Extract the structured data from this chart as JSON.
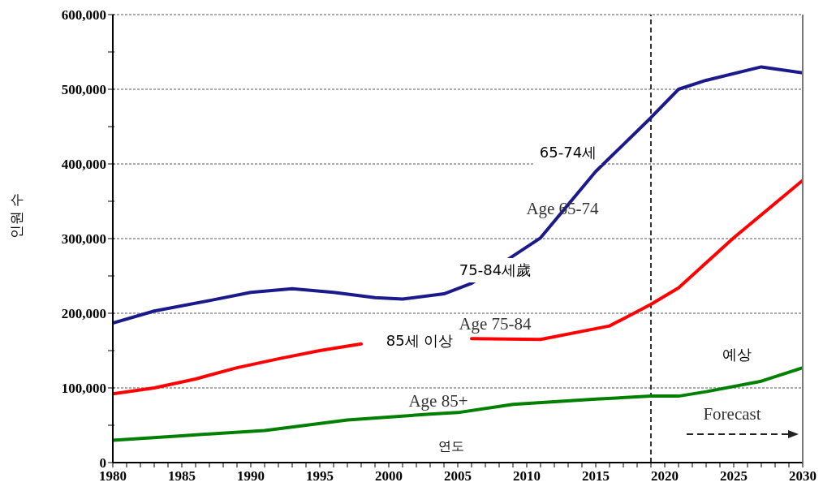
{
  "chart_data": {
    "type": "line",
    "ylabel": "인원 수",
    "xlabel": "연도",
    "series": [
      {
        "color": "#1a1a8c",
        "x": [
          1980,
          1983,
          1987,
          1990,
          1993,
          1996,
          1999,
          2001,
          2004,
          2006,
          2011,
          2015,
          2019,
          2021,
          2023,
          2027,
          2030
        ],
        "values": [
          187000,
          203000,
          217000,
          228000,
          233000,
          228000,
          221000,
          219000,
          226000,
          240000,
          301000,
          390000,
          462000,
          500000,
          512000,
          530000,
          522000
        ]
      },
      {
        "color": "#ff0000",
        "x": [
          1980,
          1983,
          1986,
          1989,
          1992,
          1995,
          1998,
          2002,
          2006,
          2011,
          2016,
          2019,
          2021,
          2025,
          2030
        ],
        "values": [
          92000,
          100000,
          112000,
          127000,
          139000,
          150000,
          159000,
          null,
          166000,
          165000,
          183000,
          212000,
          234000,
          301000,
          378000
        ]
      },
      {
        "color": "#008000",
        "x": [
          1980,
          1985,
          1991,
          1997,
          2003,
          2005,
          2009,
          2015,
          2019,
          2021,
          2023,
          2027,
          2030
        ],
        "values": [
          30000,
          36000,
          43000,
          57000,
          65000,
          67000,
          78000,
          85000,
          89000,
          89000,
          95000,
          109000,
          127000
        ]
      }
    ],
    "annotations": [
      "Age 65-74",
      "65-74세",
      "Age 75-84",
      "75-84세歲",
      "Age 85+",
      "85세 이상",
      "Forecast",
      "예상"
    ],
    "ref_lines": [
      {
        "axis": "x",
        "value": 2019,
        "color": "#333333",
        "line_style": "dashed"
      }
    ],
    "xlim": [
      1980,
      2030
    ],
    "xticks": [
      1980,
      {
        "value": 1981,
        "label": null
      },
      {
        "value": 1982,
        "label": null
      },
      {
        "value": 1983,
        "label": null
      },
      {
        "value": 1984,
        "label": null
      },
      1985,
      {
        "value": 1986,
        "label": null
      },
      {
        "value": 1987,
        "label": null
      },
      {
        "value": 1988,
        "label": null
      },
      {
        "value": 1989,
        "label": null
      },
      1990,
      {
        "value": 1991,
        "label": null
      },
      {
        "value": 1992,
        "label": null
      },
      {
        "value": 1993,
        "label": null
      },
      {
        "value": 1994,
        "label": null
      },
      1995,
      {
        "value": 1996,
        "label": null
      },
      {
        "value": 1997,
        "label": null
      },
      {
        "value": 1998,
        "label": null
      },
      {
        "value": 1999,
        "label": null
      },
      2000,
      {
        "value": 2001,
        "label": null
      },
      {
        "value": 2002,
        "label": null
      },
      {
        "value": 2003,
        "label": null
      },
      {
        "value": 2004,
        "label": null
      },
      2005,
      {
        "value": 2006,
        "label": null
      },
      {
        "value": 2007,
        "label": null
      },
      {
        "value": 2008,
        "label": null
      },
      {
        "value": 2009,
        "label": null
      },
      2010,
      {
        "value": 2011,
        "label": null
      },
      {
        "value": 2012,
        "label": null
      },
      {
        "value": 2013,
        "label": null
      },
      {
        "value": 2014,
        "label": null
      },
      2015,
      {
        "value": 2016,
        "label": null
      },
      {
        "value": 2017,
        "label": null
      },
      {
        "value": 2018,
        "label": null
      },
      {
        "value": 2019,
        "label": null
      },
      2020,
      {
        "value": 2021,
        "label": null
      },
      {
        "value": 2022,
        "label": null
      },
      {
        "value": 2023,
        "label": null
      },
      {
        "value": 2024,
        "label": null
      },
      2025,
      {
        "value": 2026,
        "label": null
      },
      {
        "value": 2027,
        "label": null
      },
      {
        "value": 2028,
        "label": null
      },
      {
        "value": 2029,
        "label": null
      },
      2030
    ],
    "ylim": [
      0,
      600000
    ],
    "yticks": [
      {
        "value": 0,
        "label": "0"
      },
      {
        "value": 50000,
        "label": null
      },
      {
        "value": 100000,
        "label": "100,000"
      },
      {
        "value": 150000,
        "label": null
      },
      {
        "value": 200000,
        "label": "200,000"
      },
      {
        "value": 250000,
        "label": null
      },
      {
        "value": 300000,
        "label": "300,000"
      },
      {
        "value": 350000,
        "label": null
      },
      {
        "value": 400000,
        "label": "400,000"
      },
      {
        "value": 450000,
        "label": null
      },
      {
        "value": 500000,
        "label": "500,000"
      },
      {
        "value": 550000,
        "label": null
      },
      {
        "value": 600000,
        "label": "600,000"
      }
    ],
    "grid": "y",
    "marker": "none",
    "line_style": "solid"
  }
}
